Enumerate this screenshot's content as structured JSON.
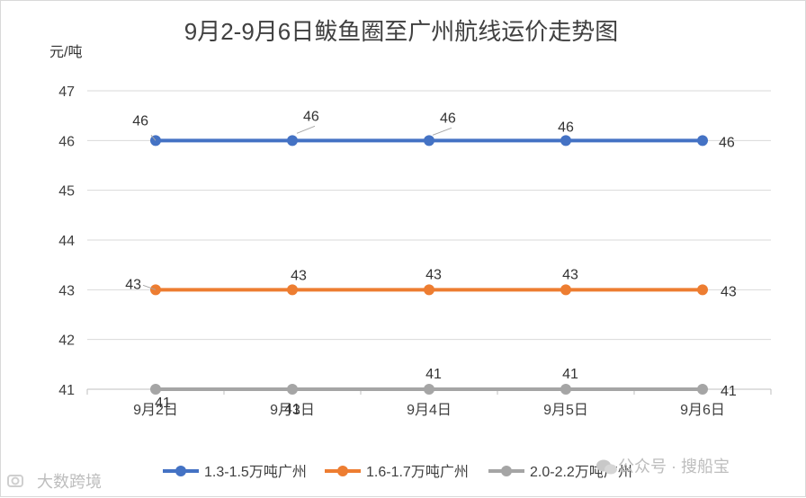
{
  "chart_data": {
    "type": "line",
    "title": "9月2-9月6日鲅鱼圈至广州航线运价走势图",
    "ylabel": "元/吨",
    "xlabel": "",
    "categories": [
      "9月2日",
      "9月3日",
      "9月4日",
      "9月5日",
      "9月6日"
    ],
    "ylim": [
      41,
      47
    ],
    "yticks": [
      41,
      42,
      43,
      44,
      45,
      46,
      47
    ],
    "grid": true,
    "legend_position": "bottom",
    "series": [
      {
        "name": "1.3-1.5万吨广州",
        "values": [
          46,
          46,
          46,
          46,
          46
        ],
        "color": "#4472c4"
      },
      {
        "name": "1.6-1.7万吨广州",
        "values": [
          43,
          43,
          43,
          43,
          43
        ],
        "color": "#ed7d31"
      },
      {
        "name": "2.0-2.2万吨广州",
        "values": [
          41,
          41,
          41,
          41,
          41
        ],
        "color": "#a5a5a5"
      }
    ]
  },
  "watermarks": {
    "left": "大数跨境",
    "right": "公众号 · 搜船宝",
    "left_icon": "camera-icon",
    "right_icon": "wechat-icon"
  }
}
